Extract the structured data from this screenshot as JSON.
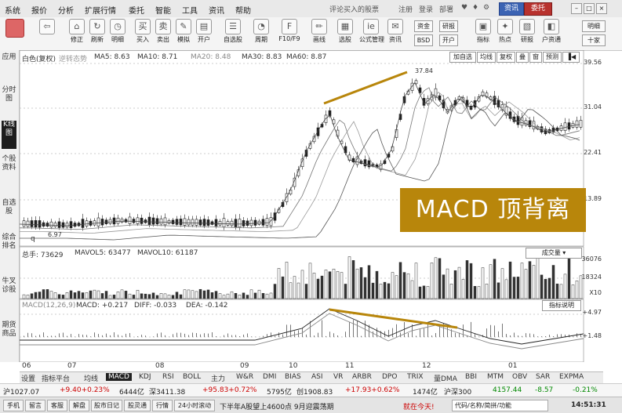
{
  "menu": {
    "items": [
      "系统",
      "报价",
      "分析",
      "扩展行情",
      "委托",
      "智能",
      "工具",
      "资讯",
      "帮助"
    ],
    "title": "评论买入的股票",
    "account": [
      "注册",
      "登录",
      "部署"
    ],
    "quote_btn": "资讯",
    "trade_btn": "委托"
  },
  "toolbar": {
    "buttons": [
      "修正",
      "刷新",
      "买入",
      "卖出",
      "模拟",
      "开户",
      "自选股",
      "周期",
      "F10/F9",
      "画线",
      "选股",
      "公式管理",
      "资讯",
      "",
      "",
      "",
      "",
      "指标",
      "热点",
      "研报",
      "户资通"
    ],
    "small": [
      "资金",
      "研报",
      "BSD",
      "开户",
      "明细",
      "十家"
    ]
  },
  "sidebar": [
    "应用",
    "分时图",
    "K线图",
    "个股资料",
    "自选股",
    "综合排名",
    "牛叉诊股",
    "期货商品"
  ],
  "chart": {
    "header": {
      "stock": "白色(复权)",
      "tail": "逆转态势",
      "ma5": "MA5: 8.63",
      "ma10": "MA10: 8.71",
      "ma20": "MA20: 8.48",
      "ma30": "MA30: 8.83",
      "ma60": "MA60: 8.87"
    },
    "price_axis": [
      "39.56",
      "31.04",
      "22.41",
      "13.89"
    ],
    "controls": [
      "加自选",
      "均线",
      "复权",
      "叠",
      "窗",
      "预测",
      "▐◀"
    ],
    "peak_label": "37.84",
    "low_label": "6.97",
    "low_q": "q",
    "volume": {
      "header": "总手: 73629",
      "mavol5": "MAVOL5: 63477",
      "mavol10": "MAVOL10: 61187",
      "select": "成交量",
      "axis": [
        "36076",
        "18324",
        "X10"
      ]
    },
    "macd": {
      "header": "MACD(12,26,9)",
      "macd": "MACD: +0.217",
      "diff": "DIFF: -0.033",
      "dea": "DEA: -0.142",
      "button": "指标说明",
      "axis": [
        "+4.97",
        "+1.48"
      ]
    },
    "dates": [
      "06",
      "07",
      "08",
      "09",
      "10",
      "11",
      "12",
      "01"
    ],
    "overlay_text": "MACD 顶背离",
    "colors": {
      "divergence": "#b8860b",
      "up": "#222222",
      "accent": "#3b63b3"
    }
  },
  "tabs": {
    "items": [
      "设置",
      "指标平台",
      "均线",
      "MACD",
      "KDJ",
      "RSI",
      "BOLL",
      "主力",
      "W&R",
      "DMI",
      "BIAS",
      "ASI",
      "VR",
      "ARBR",
      "DPO",
      "TRIX",
      "量DMA",
      "BBI",
      "MTM",
      "OBV",
      "SAR",
      "EXPMA"
    ],
    "selected": "MACD"
  },
  "quote": {
    "sh": "沪1027.07",
    "sh_chg": "+9.40+0.23%",
    "sh_amt": "6444亿",
    "sz": "深3411.38",
    "sz_chg": "+95.83+0.72%",
    "sz_amt": "5795亿",
    "cy": "创1908.83",
    "cy_chg": "+17.93+0.62%",
    "cy_amt": "1474亿",
    "hs300": "沪深300",
    "hs300_val": "4157.44",
    "hs300_chg": "-8.57",
    "hs300_pct": "-0.21%"
  },
  "status": {
    "buttons": [
      "手机",
      "留言",
      "客服",
      "解盘",
      "股市日记",
      "股灵通",
      "行情",
      "24小时滚动"
    ],
    "ticker": "下半年A股望上4600点 9月迎震荡期",
    "hint": "就在今天!",
    "search": "代码/名称/简拼/功能",
    "time": "14:51:31"
  }
}
